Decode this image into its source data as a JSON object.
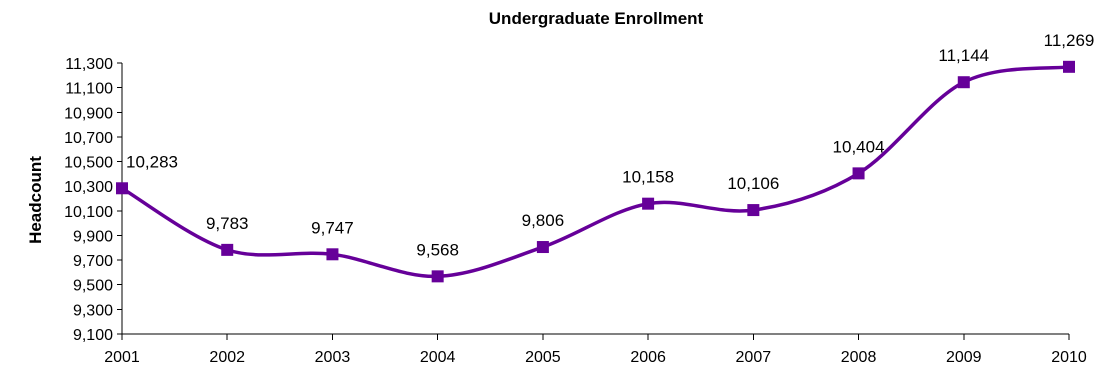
{
  "chart_data": {
    "type": "line",
    "title": "Undergraduate Enrollment",
    "xlabel": "",
    "ylabel": "Headcount",
    "x": [
      "2001",
      "2002",
      "2003",
      "2004",
      "2005",
      "2006",
      "2007",
      "2008",
      "2009",
      "2010"
    ],
    "series": [
      {
        "values": [
          10283,
          9783,
          9747,
          9568,
          9806,
          10158,
          10106,
          10404,
          11144,
          11269
        ],
        "labels": [
          "10,283",
          "9,783",
          "9,747",
          "9,568",
          "9,806",
          "10,158",
          "10,106",
          "10,404",
          "11,144",
          "11,269"
        ],
        "color": "#660099",
        "marker": "square",
        "smooth": true
      }
    ],
    "ylim": [
      9100,
      11300
    ],
    "yticks": [
      9100,
      9300,
      9500,
      9700,
      9900,
      10100,
      10300,
      10500,
      10700,
      10900,
      11100,
      11300
    ],
    "ytick_labels": [
      "9,100",
      "9,300",
      "9,500",
      "9,700",
      "9,900",
      "10,100",
      "10,300",
      "10,500",
      "10,700",
      "10,900",
      "11,100",
      "11,300"
    ],
    "grid": false,
    "legend": "none"
  }
}
